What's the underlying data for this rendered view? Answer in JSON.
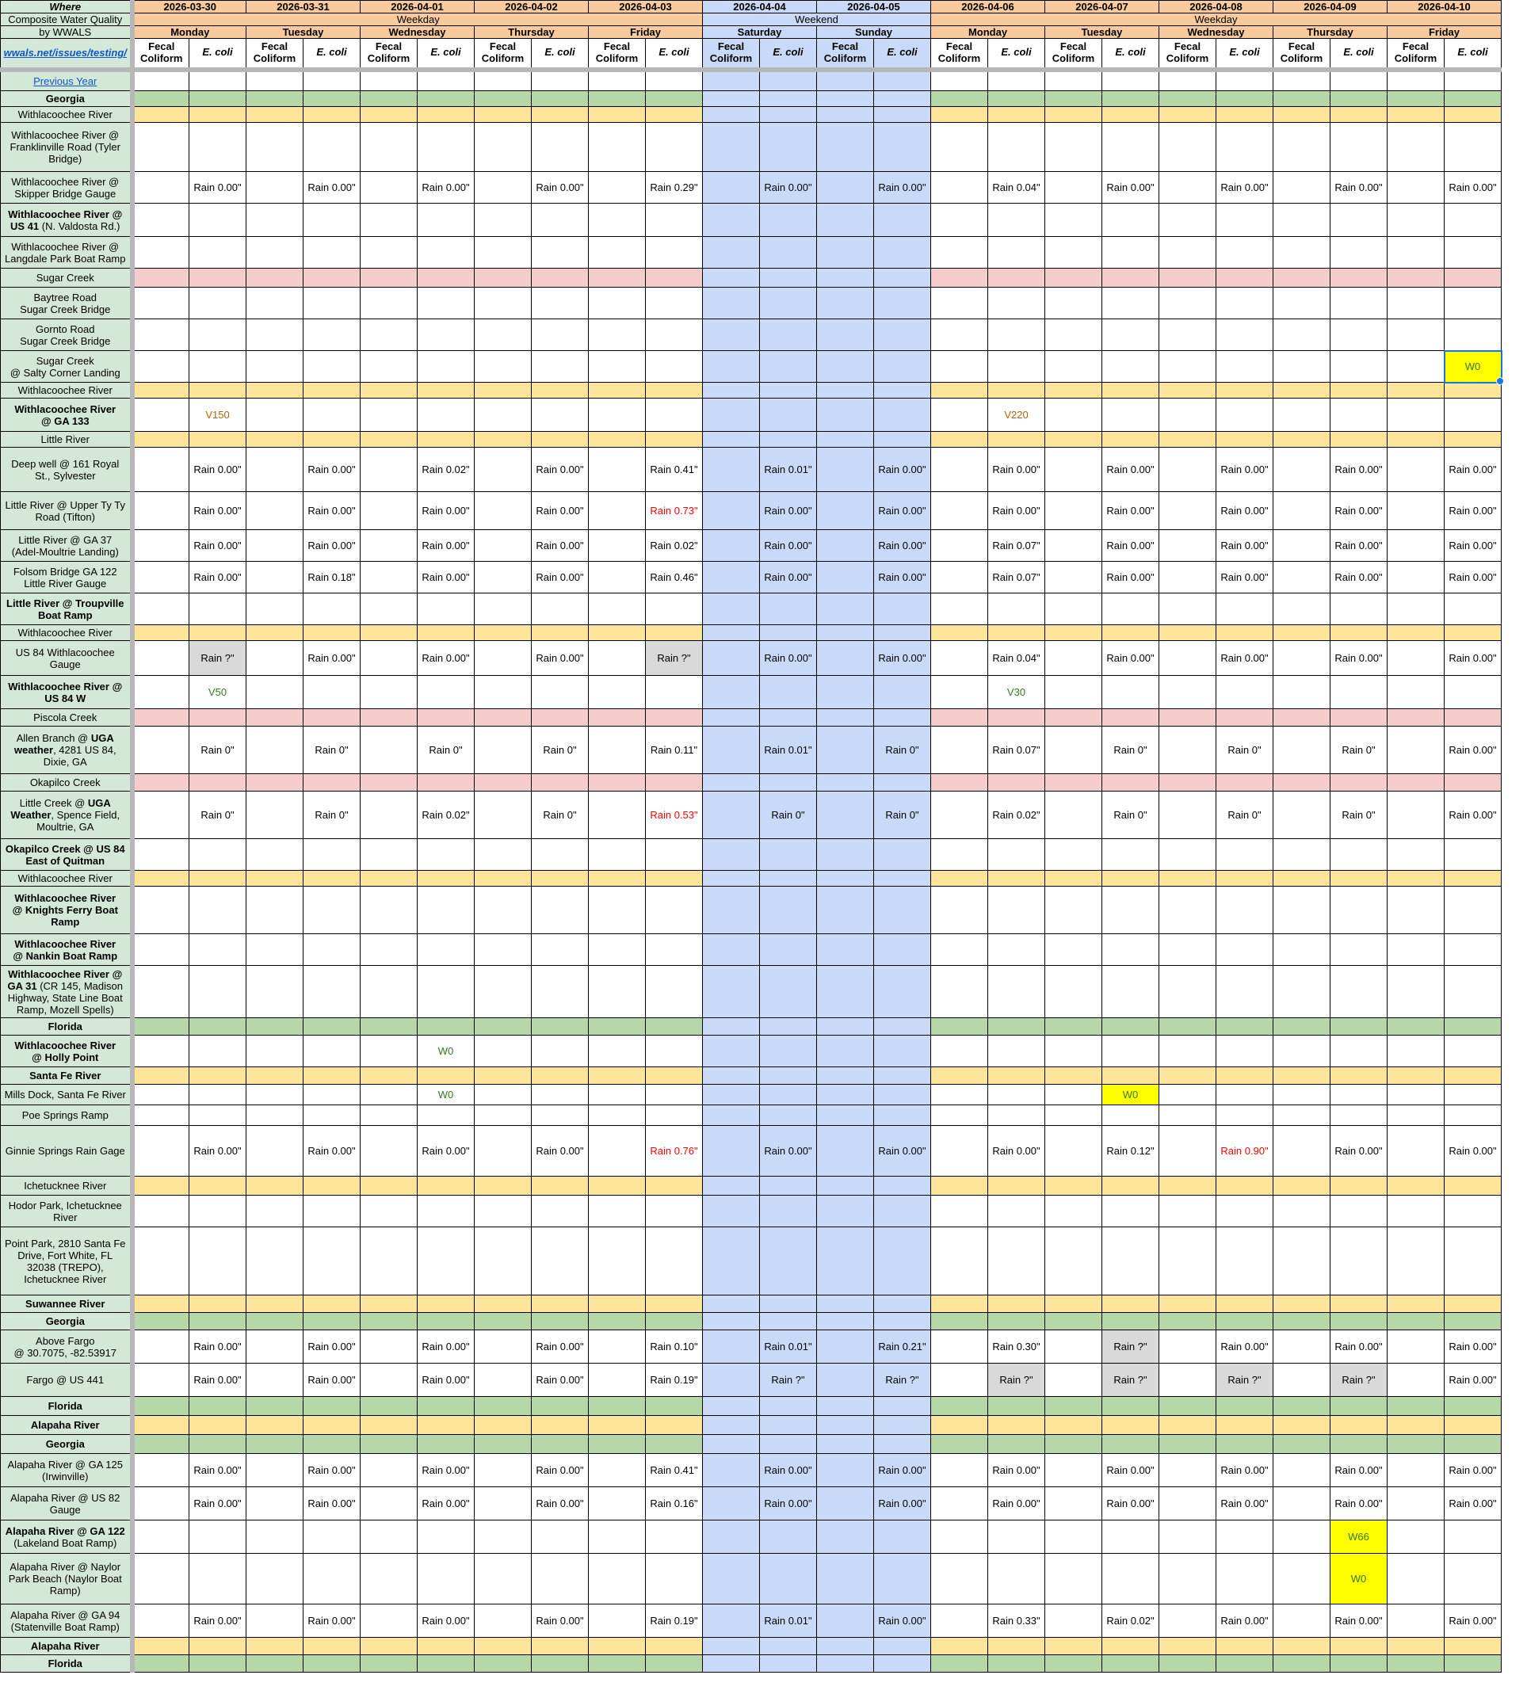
{
  "app": {
    "title": "Composite Water Quality by WWALS"
  },
  "colors": {
    "header_orange": "#f9cb9c",
    "weekend_blue": "#c9daf8",
    "section_green": "#b6d7a8",
    "river_yellow": "#ffe599",
    "creek_pink": "#f4cccc",
    "label_green": "#d3e8d6",
    "highlight_yellow": "#ffff00",
    "unknown_grey": "#d9d9d9",
    "text_red": "#ff0000",
    "text_green": "#38761d",
    "text_orange": "#b45f06",
    "link_blue": "#1155cc",
    "selection_blue": "#1a73e8"
  },
  "header": {
    "corner": [
      "Where",
      "Composite Water Quality",
      "by WWALS"
    ],
    "corner_link": "wwals.net/issues/testing/",
    "dates": [
      "2026-03-30",
      "2026-03-31",
      "2026-04-01",
      "2026-04-02",
      "2026-04-03",
      "2026-04-04",
      "2026-04-05",
      "2026-04-06",
      "2026-04-07",
      "2026-04-08",
      "2026-04-09",
      "2026-04-10"
    ],
    "weekend_date_indices": [
      5,
      6
    ],
    "week_groups": [
      {
        "label": "Weekday",
        "span_dates": 5,
        "weekend": false
      },
      {
        "label": "Weekend",
        "span_dates": 2,
        "weekend": true
      },
      {
        "label": "Weekday",
        "span_dates": 5,
        "weekend": false
      }
    ],
    "days": [
      "Monday",
      "Tuesday",
      "Wednesday",
      "Thursday",
      "Friday",
      "Saturday",
      "Sunday",
      "Monday",
      "Tuesday",
      "Wednesday",
      "Thursday",
      "Friday"
    ],
    "subcols": [
      "Fecal Coliform",
      "E. coli"
    ]
  },
  "rows": [
    {
      "name": "previous-year",
      "type": "site",
      "h": 27,
      "link": "Previous Year"
    },
    {
      "name": "section-georgia-1",
      "type": "section",
      "h": 20,
      "label": [
        {
          "t": "Georgia",
          "b": 1
        }
      ]
    },
    {
      "name": "river-withlacoochee-1",
      "type": "river",
      "h": 20,
      "label": [
        {
          "t": "Withlacoochee River"
        }
      ]
    },
    {
      "name": "site-franklinville",
      "type": "site",
      "h": 62,
      "label": [
        {
          "t": "Withlacoochee River @ Franklinville Road (Tyler Bridge)"
        }
      ]
    },
    {
      "name": "site-skipper-bridge",
      "type": "site",
      "h": 40,
      "label": [
        {
          "t": "Withlacoochee River @ Skipper Bridge Gauge"
        }
      ],
      "cells": {
        "1": "Rain 0.00\"",
        "3": "Rain 0.00\"",
        "5": "Rain 0.00\"",
        "7": "Rain 0.00\"",
        "9": "Rain 0.29\"",
        "11": "Rain 0.00\"",
        "13": "Rain 0.00\"",
        "15": "Rain 0.04\"",
        "17": "Rain 0.00\"",
        "19": "Rain 0.00\"",
        "21": "Rain 0.00\"",
        "23": "Rain 0.00\""
      }
    },
    {
      "name": "site-us41",
      "type": "site",
      "h": 42,
      "label": [
        {
          "t": "Withlacoochee River @ US 41",
          "b": 1
        },
        {
          "t": " (N. Valdosta Rd.)"
        }
      ]
    },
    {
      "name": "site-langdale",
      "type": "site",
      "h": 40,
      "label": [
        {
          "t": "Withlacoochee River @ Langdale Park Boat Ramp"
        }
      ]
    },
    {
      "name": "creek-sugar",
      "type": "creek",
      "h": 24,
      "label": [
        {
          "t": "Sugar Creek"
        }
      ]
    },
    {
      "name": "site-baytree",
      "type": "site",
      "h": 40,
      "label": [
        {
          "t": "Baytree Road\nSugar Creek Bridge"
        }
      ]
    },
    {
      "name": "site-gornto",
      "type": "site",
      "h": 40,
      "label": [
        {
          "t": "Gornto Road\nSugar Creek Bridge"
        }
      ]
    },
    {
      "name": "site-salty-corner",
      "type": "site",
      "h": 40,
      "label": [
        {
          "t": "Sugar Creek\n@ Salty Corner Landing"
        }
      ],
      "cells": {
        "23": {
          "t": "W0",
          "c": "green",
          "bg": "yellow",
          "sel": true
        }
      }
    },
    {
      "name": "river-withlacoochee-2",
      "type": "river",
      "h": 20,
      "label": [
        {
          "t": "Withlacoochee River"
        }
      ]
    },
    {
      "name": "site-ga133",
      "type": "site",
      "h": 42,
      "label": [
        {
          "t": "Withlacoochee River\n@ GA 133",
          "b": 1
        }
      ],
      "cells": {
        "1": {
          "t": "V150",
          "c": "orange"
        },
        "15": {
          "t": "V220",
          "c": "orange"
        }
      }
    },
    {
      "name": "river-little",
      "type": "river",
      "h": 20,
      "label": [
        {
          "t": "Little River"
        }
      ]
    },
    {
      "name": "site-deep-well",
      "type": "site",
      "h": 56,
      "label": [
        {
          "t": "Deep well @ 161 Royal St., Sylvester"
        }
      ],
      "cells": {
        "1": "Rain 0.00\"",
        "3": "Rain 0.00\"",
        "5": "Rain 0.02\"",
        "7": "Rain 0.00\"",
        "9": "Rain 0.41\"",
        "11": "Rain 0.01\"",
        "13": "Rain 0.00\"",
        "15": "Rain 0.00\"",
        "17": "Rain 0.00\"",
        "19": "Rain 0.00\"",
        "21": "Rain 0.00\"",
        "23": "Rain 0.00\""
      }
    },
    {
      "name": "site-upper-ty-ty",
      "type": "site",
      "h": 48,
      "label": [
        {
          "t": "Little River @ Upper Ty Ty Road (Tifton)"
        }
      ],
      "cells": {
        "1": "Rain 0.00\"",
        "3": "Rain 0.00\"",
        "5": "Rain 0.00\"",
        "7": "Rain 0.00\"",
        "9": {
          "t": "Rain 0.73\"",
          "c": "red"
        },
        "11": "Rain 0.00\"",
        "13": "Rain 0.00\"",
        "15": "Rain 0.00\"",
        "17": "Rain 0.00\"",
        "19": "Rain 0.00\"",
        "21": "Rain 0.00\"",
        "23": "Rain 0.00\""
      }
    },
    {
      "name": "site-ga37",
      "type": "site",
      "h": 40,
      "label": [
        {
          "t": "Little River @ GA 37\n(Adel-Moultrie Landing)"
        }
      ],
      "cells": {
        "1": "Rain 0.00\"",
        "3": "Rain 0.00\"",
        "5": "Rain 0.00\"",
        "7": "Rain 0.00\"",
        "9": "Rain 0.02\"",
        "11": "Rain 0.00\"",
        "13": "Rain 0.00\"",
        "15": "Rain 0.07\"",
        "17": "Rain 0.00\"",
        "19": "Rain 0.00\"",
        "21": "Rain 0.00\"",
        "23": "Rain 0.00\""
      }
    },
    {
      "name": "site-folsom",
      "type": "site",
      "h": 40,
      "label": [
        {
          "t": "Folsom Bridge GA 122\nLittle River Gauge"
        }
      ],
      "cells": {
        "1": "Rain 0.00\"",
        "3": "Rain 0.18\"",
        "5": "Rain 0.00\"",
        "7": "Rain 0.00\"",
        "9": "Rain 0.46\"",
        "11": "Rain 0.00\"",
        "13": "Rain 0.00\"",
        "15": "Rain 0.07\"",
        "17": "Rain 0.00\"",
        "19": "Rain 0.00\"",
        "21": "Rain 0.00\"",
        "23": "Rain 0.00\""
      }
    },
    {
      "name": "site-troupville",
      "type": "site",
      "h": 40,
      "label": [
        {
          "t": "Little River @ Troupville\nBoat Ramp",
          "b": 1
        }
      ]
    },
    {
      "name": "river-withlacoochee-3",
      "type": "river",
      "h": 20,
      "label": [
        {
          "t": "Withlacoochee River"
        }
      ]
    },
    {
      "name": "site-us84-gauge",
      "type": "site",
      "h": 44,
      "label": [
        {
          "t": "US 84 Withlacoochee\nGauge"
        }
      ],
      "cells": {
        "1": {
          "t": "Rain ?\"",
          "bg": "grey"
        },
        "3": "Rain 0.00\"",
        "5": "Rain 0.00\"",
        "7": "Rain 0.00\"",
        "9": {
          "t": "Rain ?\"",
          "bg": "grey"
        },
        "11": "Rain 0.00\"",
        "13": "Rain 0.00\"",
        "15": "Rain 0.04\"",
        "17": "Rain 0.00\"",
        "19": "Rain 0.00\"",
        "21": "Rain 0.00\"",
        "23": "Rain 0.00\""
      }
    },
    {
      "name": "site-us84w",
      "type": "site",
      "h": 42,
      "label": [
        {
          "t": "Withlacoochee River @\nUS 84 W",
          "b": 1
        }
      ],
      "cells": {
        "1": {
          "t": "V50",
          "c": "green"
        },
        "15": {
          "t": "V30",
          "c": "green"
        }
      }
    },
    {
      "name": "creek-piscola",
      "type": "creek",
      "h": 22,
      "label": [
        {
          "t": "Piscola Creek"
        }
      ]
    },
    {
      "name": "site-allen-branch",
      "type": "site",
      "h": 60,
      "label": [
        {
          "t": "Allen  Branch @ "
        },
        {
          "t": "UGA weather",
          "b": 1
        },
        {
          "t": ", 4281 US 84, Dixie, GA"
        }
      ],
      "cells": {
        "1": "Rain 0\"",
        "3": "Rain 0\"",
        "5": "Rain 0\"",
        "7": "Rain 0\"",
        "9": "Rain 0.11\"",
        "11": "Rain 0.01\"",
        "13": "Rain 0\"",
        "15": "Rain 0.07\"",
        "17": "Rain 0\"",
        "19": "Rain 0\"",
        "21": "Rain 0\"",
        "23": "Rain 0.00\""
      }
    },
    {
      "name": "creek-okapilco",
      "type": "creek",
      "h": 22,
      "label": [
        {
          "t": "Okapilco Creek"
        }
      ]
    },
    {
      "name": "site-little-creek",
      "type": "site",
      "h": 60,
      "label": [
        {
          "t": "Little Creek @ "
        },
        {
          "t": "UGA Weather",
          "b": 1
        },
        {
          "t": ", Spence Field, Moultrie, GA"
        }
      ],
      "cells": {
        "1": "Rain 0\"",
        "3": "Rain 0\"",
        "5": "Rain 0.02\"",
        "7": "Rain 0\"",
        "9": {
          "t": "Rain 0.53\"",
          "c": "red"
        },
        "11": "Rain 0\"",
        "13": "Rain 0\"",
        "15": "Rain 0.02\"",
        "17": "Rain 0\"",
        "19": "Rain 0\"",
        "21": "Rain 0\"",
        "23": "Rain 0.00\""
      }
    },
    {
      "name": "site-okapilco-us84",
      "type": "site",
      "h": 40,
      "label": [
        {
          "t": "Okapilco Creek @ US 84\nEast of Quitman",
          "b": 1
        }
      ]
    },
    {
      "name": "river-withlacoochee-4",
      "type": "river",
      "h": 20,
      "label": [
        {
          "t": "Withlacoochee River"
        }
      ]
    },
    {
      "name": "site-knights-ferry",
      "type": "site",
      "h": 60,
      "label": [
        {
          "t": "Withlacoochee River\n@ Knights Ferry Boat\nRamp",
          "b": 1
        }
      ]
    },
    {
      "name": "site-nankin",
      "type": "site",
      "h": 40,
      "label": [
        {
          "t": "Withlacoochee River\n@ Nankin Boat Ramp",
          "b": 1
        }
      ]
    },
    {
      "name": "site-ga31",
      "type": "site",
      "h": 66,
      "label": [
        {
          "t": "Withlacoochee River @\nGA 31",
          "b": 1
        },
        {
          "t": " (CR 145, Madison Highway, State Line Boat Ramp, Mozell Spells)"
        }
      ]
    },
    {
      "name": "section-florida-1",
      "type": "section",
      "h": 22,
      "label": [
        {
          "t": "Florida",
          "b": 1
        }
      ]
    },
    {
      "name": "site-holly-point",
      "type": "site",
      "h": 40,
      "label": [
        {
          "t": "Withlacoochee River\n@ Holly Point",
          "b": 1
        }
      ],
      "cells": {
        "5": {
          "t": "W0",
          "c": "green"
        }
      }
    },
    {
      "name": "river-santa-fe",
      "type": "river",
      "h": 22,
      "label": [
        {
          "t": "Santa Fe River",
          "b": 1
        }
      ]
    },
    {
      "name": "site-mills-dock",
      "type": "site",
      "h": 26,
      "label": [
        {
          "t": "Mills Dock, Santa Fe River"
        }
      ],
      "cells": {
        "5": {
          "t": "W0",
          "c": "green"
        },
        "17": {
          "t": "W0",
          "c": "green",
          "bg": "yellow"
        }
      }
    },
    {
      "name": "site-poe-springs",
      "type": "site",
      "h": 26,
      "label": [
        {
          "t": "Poe Springs Ramp"
        }
      ]
    },
    {
      "name": "site-ginnie-springs",
      "type": "site",
      "h": 64,
      "label": [
        {
          "t": "Ginnie Springs Rain Gage"
        }
      ],
      "cells": {
        "1": "Rain 0.00\"",
        "3": "Rain 0.00\"",
        "5": "Rain 0.00\"",
        "7": "Rain 0.00\"",
        "9": {
          "t": "Rain 0.76\"",
          "c": "red"
        },
        "11": "Rain 0.00\"",
        "13": "Rain 0.00\"",
        "15": "Rain 0.00\"",
        "17": "Rain 0.12\"",
        "19": {
          "t": "Rain 0.90\"",
          "c": "red"
        },
        "21": "Rain 0.00\"",
        "23": "Rain 0.00\""
      }
    },
    {
      "name": "river-ichetucknee",
      "type": "river",
      "h": 24,
      "label": [
        {
          "t": "Ichetucknee River"
        }
      ]
    },
    {
      "name": "site-hodor-park",
      "type": "site",
      "h": 40,
      "label": [
        {
          "t": "Hodor Park, Ichetucknee\nRiver"
        }
      ]
    },
    {
      "name": "site-point-park",
      "type": "site",
      "h": 86,
      "label": [
        {
          "t": "Point Park, 2810 Santa Fe\nDrive, Fort White, FL\n32038 (TREPO),\nIchetucknee River"
        }
      ]
    },
    {
      "name": "river-suwannee",
      "type": "river",
      "h": 22,
      "label": [
        {
          "t": "Suwannee River",
          "b": 1
        }
      ]
    },
    {
      "name": "section-georgia-2",
      "type": "section",
      "h": 22,
      "label": [
        {
          "t": "Georgia",
          "b": 1
        }
      ]
    },
    {
      "name": "site-above-fargo",
      "type": "site",
      "h": 42,
      "label": [
        {
          "t": "Above Fargo\n@ 30.7075, -82.53917"
        }
      ],
      "cells": {
        "1": "Rain 0.00\"",
        "3": "Rain 0.00\"",
        "5": "Rain 0.00\"",
        "7": "Rain 0.00\"",
        "9": "Rain 0.10\"",
        "11": "Rain 0.01\"",
        "13": "Rain 0.21\"",
        "15": "Rain 0.30\"",
        "17": {
          "t": "Rain ?\"",
          "bg": "grey"
        },
        "19": "Rain 0.00\"",
        "21": "Rain 0.00\"",
        "23": "Rain 0.00\""
      }
    },
    {
      "name": "site-fargo-us441",
      "type": "site",
      "h": 42,
      "label": [
        {
          "t": "Fargo @ US 441"
        }
      ],
      "cells": {
        "1": "Rain 0.00\"",
        "3": "Rain 0.00\"",
        "5": "Rain 0.00\"",
        "7": "Rain 0.00\"",
        "9": "Rain 0.19\"",
        "11": "Rain ?\"",
        "13": "Rain ?\"",
        "15": {
          "t": "Rain ?\"",
          "bg": "grey"
        },
        "17": {
          "t": "Rain ?\"",
          "bg": "grey"
        },
        "19": {
          "t": "Rain ?\"",
          "bg": "grey"
        },
        "21": {
          "t": "Rain ?\"",
          "bg": "grey"
        },
        "23": "Rain 0.00\""
      }
    },
    {
      "name": "section-florida-2",
      "type": "section",
      "h": 24,
      "label": [
        {
          "t": "Florida",
          "b": 1
        }
      ]
    },
    {
      "name": "river-alapaha-1",
      "type": "river",
      "h": 24,
      "label": [
        {
          "t": "Alapaha River",
          "b": 1
        }
      ]
    },
    {
      "name": "section-georgia-3",
      "type": "section",
      "h": 24,
      "label": [
        {
          "t": "Georgia",
          "b": 1
        }
      ]
    },
    {
      "name": "site-ga125",
      "type": "site",
      "h": 42,
      "label": [
        {
          "t": "Alapaha River @ GA 125\n(Irwinville)"
        }
      ],
      "cells": {
        "1": "Rain 0.00\"",
        "3": "Rain 0.00\"",
        "5": "Rain 0.00\"",
        "7": "Rain 0.00\"",
        "9": "Rain 0.41\"",
        "11": "Rain 0.00\"",
        "13": "Rain 0.00\"",
        "15": "Rain 0.00\"",
        "17": "Rain 0.00\"",
        "19": "Rain 0.00\"",
        "21": "Rain 0.00\"",
        "23": "Rain 0.00\""
      }
    },
    {
      "name": "site-us82",
      "type": "site",
      "h": 42,
      "label": [
        {
          "t": "Alapaha River @ US 82\nGauge"
        }
      ],
      "cells": {
        "1": "Rain 0.00\"",
        "3": "Rain 0.00\"",
        "5": "Rain 0.00\"",
        "7": "Rain 0.00\"",
        "9": "Rain 0.16\"",
        "11": "Rain 0.00\"",
        "13": "Rain 0.00\"",
        "15": "Rain 0.00\"",
        "17": "Rain 0.00\"",
        "19": "Rain 0.00\"",
        "21": "Rain 0.00\"",
        "23": "Rain 0.00\""
      }
    },
    {
      "name": "site-ga122",
      "type": "site",
      "h": 42,
      "label": [
        {
          "t": "Alapaha River @ GA 122",
          "b": 1
        },
        {
          "t": "\n(Lakeland Boat Ramp)"
        }
      ],
      "cells": {
        "21": {
          "t": "W66",
          "c": "green",
          "bg": "yellow"
        }
      }
    },
    {
      "name": "site-naylor",
      "type": "site",
      "h": 64,
      "label": [
        {
          "t": "Alapaha River @ Naylor\nPark Beach (Naylor Boat\nRamp)"
        }
      ],
      "cells": {
        "21": {
          "t": "W0",
          "c": "green",
          "bg": "yellow"
        }
      }
    },
    {
      "name": "site-ga94",
      "type": "site",
      "h": 42,
      "label": [
        {
          "t": "Alapaha River @ GA 94\n(Statenville Boat Ramp)"
        }
      ],
      "cells": {
        "1": "Rain 0.00\"",
        "3": "Rain 0.00\"",
        "5": "Rain 0.00\"",
        "7": "Rain 0.00\"",
        "9": "Rain 0.19\"",
        "11": "Rain 0.01\"",
        "13": "Rain 0.00\"",
        "15": "Rain 0.33\"",
        "17": "Rain 0.02\"",
        "19": "Rain 0.00\"",
        "21": "Rain 0.00\"",
        "23": "Rain 0.00\""
      }
    },
    {
      "name": "river-alapaha-2",
      "type": "river",
      "h": 22,
      "label": [
        {
          "t": "Alapaha River",
          "b": 1
        }
      ]
    },
    {
      "name": "section-florida-3",
      "type": "section",
      "h": 22,
      "label": [
        {
          "t": "Florida",
          "b": 1
        }
      ]
    }
  ]
}
